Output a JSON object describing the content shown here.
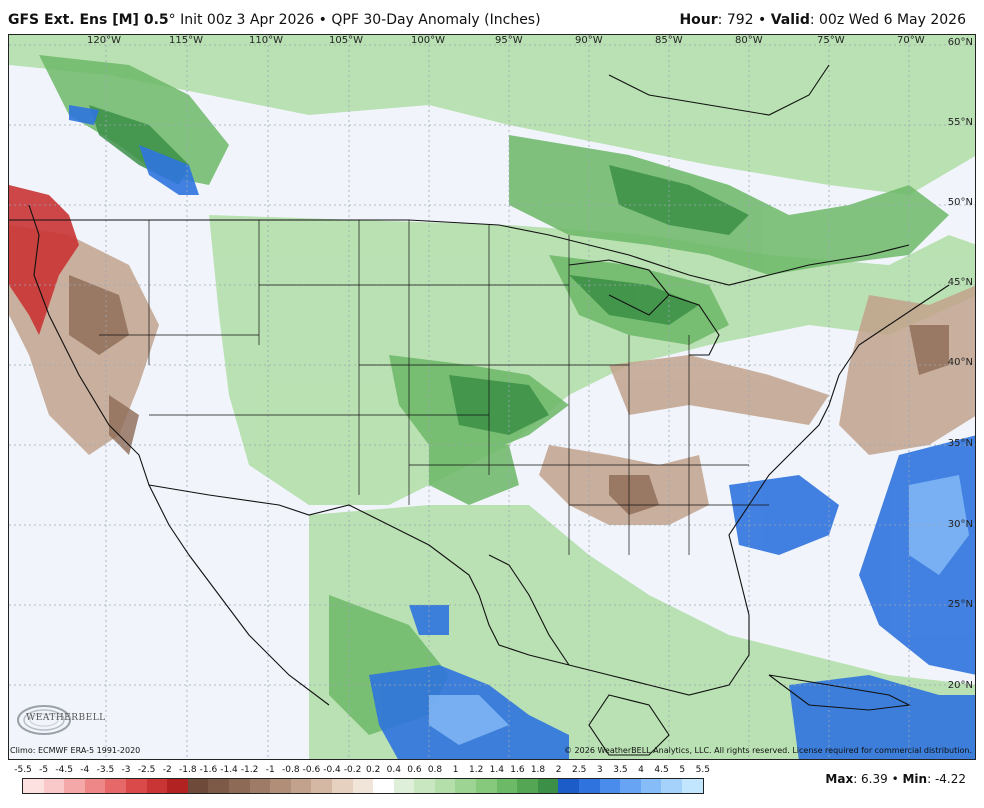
{
  "header": {
    "model_bold": "GFS Ext.  Ens [M] 0.5",
    "degree": "°",
    "init": " Init 00z 3 Apr 2026",
    "bullet": " • ",
    "product": "QPF 30-Day Anomaly (Inches)",
    "hour_label": "Hour",
    "hour_value": ": 792",
    "valid_label": "Valid",
    "valid_value": ": 00z Wed 6 May 2026"
  },
  "map": {
    "longitude_labels": [
      "120°W",
      "115°W",
      "110°W",
      "105°W",
      "100°W",
      "95°W",
      "90°W",
      "85°W",
      "80°W",
      "75°W",
      "70°W"
    ],
    "latitude_labels": [
      "60°N",
      "55°N",
      "50°N",
      "45°N",
      "40°N",
      "35°N",
      "30°N",
      "25°N",
      "20°N"
    ]
  },
  "footer": {
    "climo": "Climo: ECMWF ERA-5 1991-2020",
    "copyright": "© 2026 WeatherBELL Analytics, LLC. All rights reserved. License required for commercial distribution.",
    "logo_text": "WEATHERBELL",
    "max_label": "Max",
    "max_value": ": 6.39",
    "bullet": " • ",
    "min_label": "Min",
    "min_value": ": -4.22"
  },
  "legend": {
    "ticks": [
      "-5.5",
      "-5",
      "-4.5",
      "-4",
      "-3.5",
      "-3",
      "-2.5",
      "-2",
      "-1.8",
      "-1.6",
      "-1.4",
      "-1.2",
      "-1",
      "-0.8",
      "-0.6",
      "-0.4",
      "-0.2",
      "0.2",
      "0.4",
      "0.6",
      "0.8",
      "1",
      "1.2",
      "1.4",
      "1.6",
      "1.8",
      "2",
      "2.5",
      "3",
      "3.5",
      "4",
      "4.5",
      "5",
      "5.5"
    ],
    "colors": [
      "#fde0e0",
      "#f9c8c8",
      "#f4a8a8",
      "#ee8888",
      "#e66868",
      "#db4a4a",
      "#c93434",
      "#b22222",
      "#6e4a3a",
      "#7d5a48",
      "#8d6a56",
      "#9e7b66",
      "#b08e78",
      "#c2a28c",
      "#d4b8a4",
      "#e6d0c0",
      "#f1e4d8",
      "#ffffff",
      "#dff0da",
      "#c9e8c2",
      "#b4dfab",
      "#9ed493",
      "#86c87c",
      "#6cb967",
      "#54a655",
      "#3c8f46",
      "#1c5cc8",
      "#2f74de",
      "#4a8cec",
      "#67a4f4",
      "#86bcf8",
      "#a4d2fb",
      "#c2e6fd"
    ]
  }
}
